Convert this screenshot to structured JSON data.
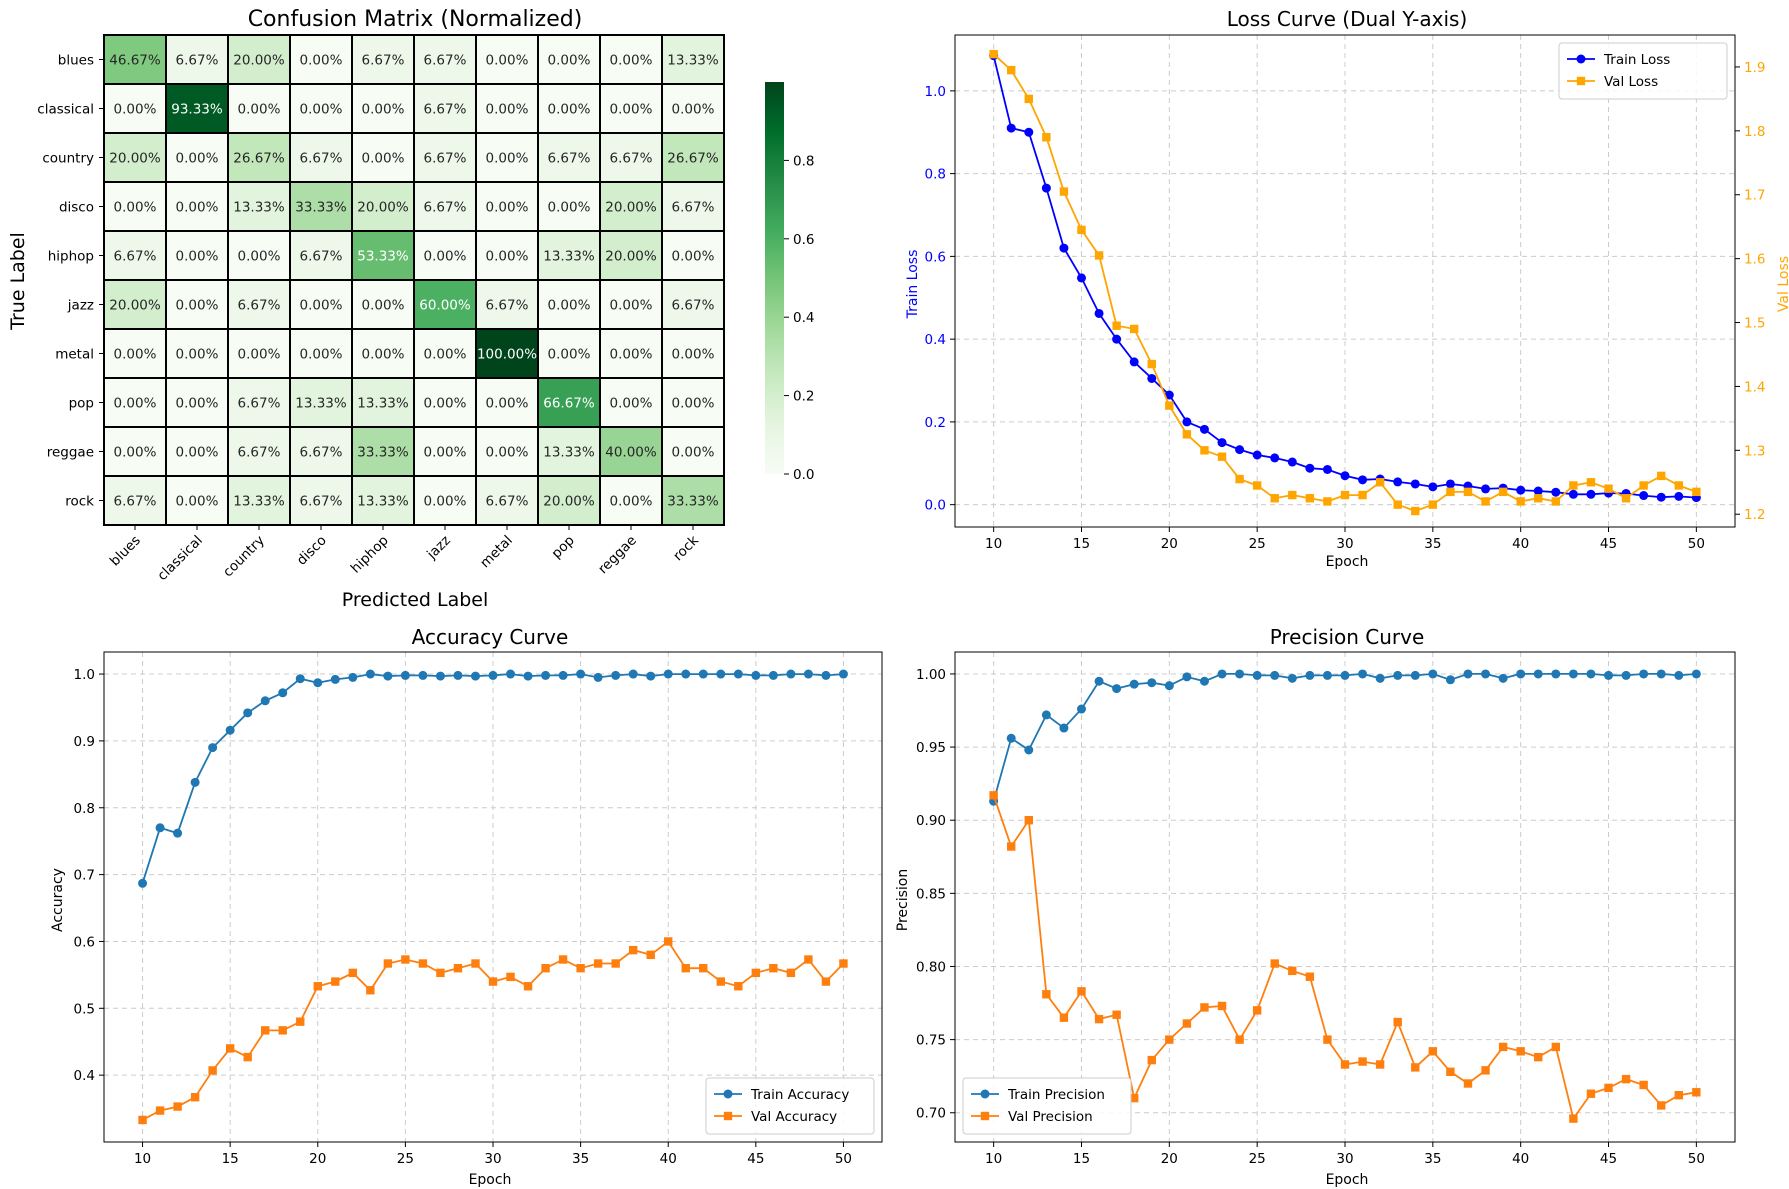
{
  "colors": {
    "train_blue": "#0000ff",
    "val_orange": "#ffa500",
    "mpl_blue": "#1f77b4",
    "mpl_orange": "#ff7f0e",
    "grid": "#cccccc",
    "cm_light": "#f7fcf5",
    "cm_dark": "#00441b"
  },
  "chart_data": [
    {
      "type": "heatmap",
      "title": "Confusion Matrix (Normalized)",
      "xlabel": "Predicted Label",
      "ylabel": "True Label",
      "labels": [
        "blues",
        "classical",
        "country",
        "disco",
        "hiphop",
        "jazz",
        "metal",
        "pop",
        "reggae",
        "rock"
      ],
      "matrix": [
        [
          0.4667,
          0.0667,
          0.2,
          0.0,
          0.0667,
          0.0667,
          0.0,
          0.0,
          0.0,
          0.1333
        ],
        [
          0.0,
          0.9333,
          0.0,
          0.0,
          0.0,
          0.0667,
          0.0,
          0.0,
          0.0,
          0.0
        ],
        [
          0.2,
          0.0,
          0.2667,
          0.0667,
          0.0,
          0.0667,
          0.0,
          0.0667,
          0.0667,
          0.2667
        ],
        [
          0.0,
          0.0,
          0.1333,
          0.3333,
          0.2,
          0.0667,
          0.0,
          0.0,
          0.2,
          0.0667
        ],
        [
          0.0667,
          0.0,
          0.0,
          0.0667,
          0.5333,
          0.0,
          0.0,
          0.1333,
          0.2,
          0.0
        ],
        [
          0.2,
          0.0,
          0.0667,
          0.0,
          0.0,
          0.6,
          0.0667,
          0.0,
          0.0,
          0.0667
        ],
        [
          0.0,
          0.0,
          0.0,
          0.0,
          0.0,
          0.0,
          1.0,
          0.0,
          0.0,
          0.0
        ],
        [
          0.0,
          0.0,
          0.0667,
          0.1333,
          0.1333,
          0.0,
          0.0,
          0.6667,
          0.0,
          0.0
        ],
        [
          0.0,
          0.0,
          0.0667,
          0.0667,
          0.3333,
          0.0,
          0.0,
          0.1333,
          0.4,
          0.0
        ],
        [
          0.0667,
          0.0,
          0.1333,
          0.0667,
          0.1333,
          0.0,
          0.0667,
          0.2,
          0.0,
          0.3333
        ]
      ],
      "cell_text": [
        [
          "46.67%",
          "6.67%",
          "20.00%",
          "0.00%",
          "6.67%",
          "6.67%",
          "0.00%",
          "0.00%",
          "0.00%",
          "13.33%"
        ],
        [
          "0.00%",
          "93.33%",
          "0.00%",
          "0.00%",
          "0.00%",
          "6.67%",
          "0.00%",
          "0.00%",
          "0.00%",
          "0.00%"
        ],
        [
          "20.00%",
          "0.00%",
          "26.67%",
          "6.67%",
          "0.00%",
          "6.67%",
          "0.00%",
          "6.67%",
          "6.67%",
          "26.67%"
        ],
        [
          "0.00%",
          "0.00%",
          "13.33%",
          "33.33%",
          "20.00%",
          "6.67%",
          "0.00%",
          "0.00%",
          "20.00%",
          "6.67%"
        ],
        [
          "6.67%",
          "0.00%",
          "0.00%",
          "6.67%",
          "53.33%",
          "0.00%",
          "0.00%",
          "13.33%",
          "20.00%",
          "0.00%"
        ],
        [
          "20.00%",
          "0.00%",
          "6.67%",
          "0.00%",
          "0.00%",
          "60.00%",
          "6.67%",
          "0.00%",
          "0.00%",
          "6.67%"
        ],
        [
          "0.00%",
          "0.00%",
          "0.00%",
          "0.00%",
          "0.00%",
          "0.00%",
          "100.00%",
          "0.00%",
          "0.00%",
          "0.00%"
        ],
        [
          "0.00%",
          "0.00%",
          "6.67%",
          "13.33%",
          "13.33%",
          "0.00%",
          "0.00%",
          "66.67%",
          "0.00%",
          "0.00%"
        ],
        [
          "0.00%",
          "0.00%",
          "6.67%",
          "6.67%",
          "33.33%",
          "0.00%",
          "0.00%",
          "13.33%",
          "40.00%",
          "0.00%"
        ],
        [
          "6.67%",
          "0.00%",
          "13.33%",
          "6.67%",
          "13.33%",
          "0.00%",
          "6.67%",
          "20.00%",
          "0.00%",
          "33.33%"
        ]
      ],
      "colorbar_range": [
        0.0,
        1.0
      ],
      "colorbar_ticks": [
        "0.0",
        "0.2",
        "0.4",
        "0.6",
        "0.8"
      ]
    },
    {
      "type": "line",
      "title": "Loss Curve (Dual Y-axis)",
      "xlabel": "Epoch",
      "ylabel": "Train Loss",
      "ylabel_right": "Val Loss",
      "x": [
        10,
        11,
        12,
        13,
        14,
        15,
        16,
        17,
        18,
        19,
        20,
        21,
        22,
        23,
        24,
        25,
        26,
        27,
        28,
        29,
        30,
        31,
        32,
        33,
        34,
        35,
        36,
        37,
        38,
        39,
        40,
        41,
        42,
        43,
        44,
        45,
        46,
        47,
        48,
        49,
        50
      ],
      "xlim": [
        7.8,
        52.2
      ],
      "xticks": [
        "10",
        "15",
        "20",
        "25",
        "30",
        "35",
        "40",
        "45",
        "50"
      ],
      "ylim": [
        -0.054,
        1.135
      ],
      "yticks": [
        "0.0",
        "0.2",
        "0.4",
        "0.6",
        "0.8",
        "1.0"
      ],
      "ylim_right": [
        1.18,
        1.95
      ],
      "yticks_right": [
        "1.2",
        "1.3",
        "1.4",
        "1.5",
        "1.6",
        "1.7",
        "1.8",
        "1.9"
      ],
      "legend_position": "top-right",
      "grid": true,
      "series": [
        {
          "name": "Train Loss",
          "axis": "left",
          "marker": "circle",
          "values": [
            1.085,
            0.91,
            0.9,
            0.765,
            0.62,
            0.548,
            0.462,
            0.4,
            0.345,
            0.305,
            0.265,
            0.2,
            0.182,
            0.15,
            0.133,
            0.12,
            0.113,
            0.103,
            0.088,
            0.085,
            0.07,
            0.06,
            0.062,
            0.055,
            0.05,
            0.043,
            0.05,
            0.045,
            0.038,
            0.04,
            0.035,
            0.033,
            0.03,
            0.025,
            0.025,
            0.028,
            0.027,
            0.022,
            0.018,
            0.02,
            0.017
          ]
        },
        {
          "name": "Val Loss",
          "axis": "right",
          "marker": "square",
          "values": [
            1.92,
            1.895,
            1.85,
            1.79,
            1.705,
            1.645,
            1.605,
            1.495,
            1.49,
            1.435,
            1.37,
            1.325,
            1.3,
            1.29,
            1.255,
            1.245,
            1.225,
            1.23,
            1.225,
            1.22,
            1.23,
            1.23,
            1.25,
            1.215,
            1.205,
            1.215,
            1.235,
            1.235,
            1.22,
            1.235,
            1.22,
            1.225,
            1.22,
            1.245,
            1.25,
            1.24,
            1.225,
            1.245,
            1.26,
            1.245,
            1.235
          ]
        }
      ]
    },
    {
      "type": "line",
      "title": "Accuracy Curve",
      "xlabel": "Epoch",
      "ylabel": "Accuracy",
      "x": [
        10,
        11,
        12,
        13,
        14,
        15,
        16,
        17,
        18,
        19,
        20,
        21,
        22,
        23,
        24,
        25,
        26,
        27,
        28,
        29,
        30,
        31,
        32,
        33,
        34,
        35,
        36,
        37,
        38,
        39,
        40,
        41,
        42,
        43,
        44,
        45,
        46,
        47,
        48,
        49,
        50
      ],
      "xlim": [
        7.8,
        52.2
      ],
      "xticks": [
        "10",
        "15",
        "20",
        "25",
        "30",
        "35",
        "40",
        "45",
        "50"
      ],
      "ylim": [
        0.3,
        1.033
      ],
      "yticks": [
        "0.4",
        "0.5",
        "0.6",
        "0.7",
        "0.8",
        "0.9",
        "1.0"
      ],
      "legend_position": "bottom-right",
      "grid": true,
      "series": [
        {
          "name": "Train Accuracy",
          "marker": "circle",
          "values": [
            0.687,
            0.77,
            0.762,
            0.838,
            0.89,
            0.916,
            0.942,
            0.96,
            0.972,
            0.993,
            0.987,
            0.992,
            0.995,
            1.0,
            0.997,
            0.998,
            0.998,
            0.997,
            0.998,
            0.997,
            0.998,
            1.0,
            0.997,
            0.998,
            0.998,
            1.0,
            0.995,
            0.998,
            1.0,
            0.997,
            1.0,
            1.0,
            1.0,
            1.0,
            1.0,
            0.998,
            0.998,
            1.0,
            1.0,
            0.998,
            1.0
          ]
        },
        {
          "name": "Val Accuracy",
          "marker": "square",
          "values": [
            0.333,
            0.347,
            0.353,
            0.367,
            0.407,
            0.44,
            0.427,
            0.467,
            0.467,
            0.48,
            0.533,
            0.54,
            0.553,
            0.527,
            0.567,
            0.573,
            0.567,
            0.553,
            0.56,
            0.567,
            0.54,
            0.547,
            0.533,
            0.56,
            0.573,
            0.56,
            0.567,
            0.567,
            0.587,
            0.58,
            0.6,
            0.56,
            0.56,
            0.54,
            0.533,
            0.553,
            0.56,
            0.553,
            0.573,
            0.54,
            0.567
          ]
        }
      ]
    },
    {
      "type": "line",
      "title": "Precision Curve",
      "xlabel": "Epoch",
      "ylabel": "Precision",
      "x": [
        10,
        11,
        12,
        13,
        14,
        15,
        16,
        17,
        18,
        19,
        20,
        21,
        22,
        23,
        24,
        25,
        26,
        27,
        28,
        29,
        30,
        31,
        32,
        33,
        34,
        35,
        36,
        37,
        38,
        39,
        40,
        41,
        42,
        43,
        44,
        45,
        46,
        47,
        48,
        49,
        50
      ],
      "xlim": [
        7.8,
        52.2
      ],
      "xticks": [
        "10",
        "15",
        "20",
        "25",
        "30",
        "35",
        "40",
        "45",
        "50"
      ],
      "ylim": [
        0.68,
        1.015
      ],
      "yticks": [
        "0.70",
        "0.75",
        "0.80",
        "0.85",
        "0.90",
        "0.95",
        "1.00"
      ],
      "legend_position": "bottom-left",
      "grid": true,
      "series": [
        {
          "name": "Train Precision",
          "marker": "circle",
          "values": [
            0.913,
            0.956,
            0.948,
            0.972,
            0.963,
            0.976,
            0.995,
            0.99,
            0.993,
            0.994,
            0.992,
            0.998,
            0.995,
            1.0,
            1.0,
            0.999,
            0.999,
            0.997,
            0.999,
            0.999,
            0.999,
            1.0,
            0.997,
            0.999,
            0.999,
            1.0,
            0.996,
            1.0,
            1.0,
            0.997,
            1.0,
            1.0,
            1.0,
            1.0,
            1.0,
            0.999,
            0.999,
            1.0,
            1.0,
            0.999,
            1.0
          ]
        },
        {
          "name": "Val Precision",
          "marker": "square",
          "values": [
            0.917,
            0.882,
            0.9,
            0.781,
            0.765,
            0.783,
            0.764,
            0.767,
            0.71,
            0.736,
            0.75,
            0.761,
            0.772,
            0.773,
            0.75,
            0.77,
            0.802,
            0.797,
            0.793,
            0.75,
            0.733,
            0.735,
            0.733,
            0.762,
            0.731,
            0.742,
            0.728,
            0.72,
            0.729,
            0.745,
            0.742,
            0.738,
            0.745,
            0.696,
            0.713,
            0.717,
            0.723,
            0.719,
            0.705,
            0.712,
            0.714
          ]
        }
      ]
    }
  ]
}
